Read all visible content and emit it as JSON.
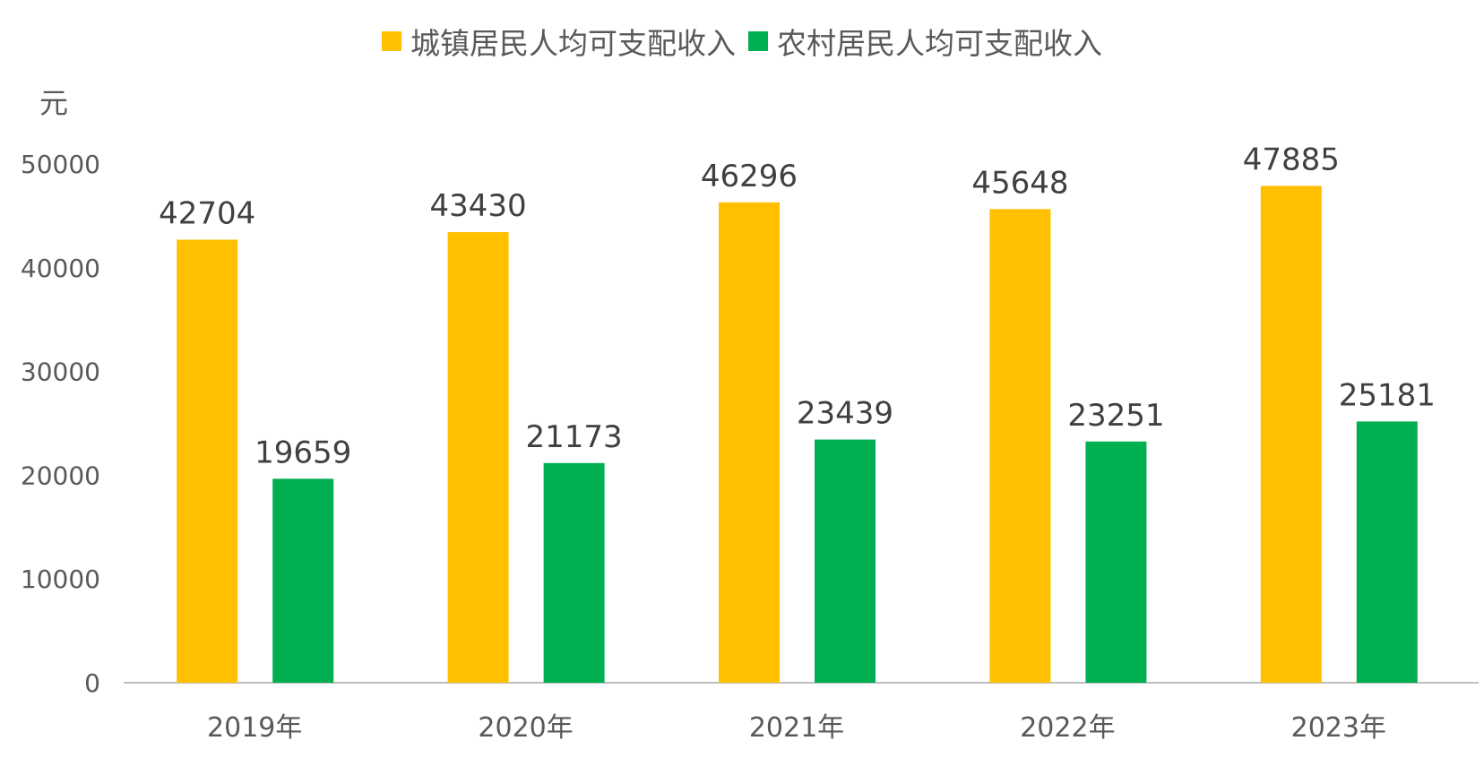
{
  "chart_data": {
    "type": "bar",
    "title": "",
    "ylabel": "元",
    "xlabel": "",
    "categories": [
      "2019年",
      "2020年",
      "2021年",
      "2022年",
      "2023年"
    ],
    "series": [
      {
        "name": "城镇居民人均可支配收入",
        "color": "#FFC000",
        "values": [
          42704,
          43430,
          46296,
          45648,
          47885
        ]
      },
      {
        "name": "农村居民人均可支配收入",
        "color": "#00B050",
        "values": [
          19659,
          21173,
          23439,
          23251,
          25181
        ]
      }
    ],
    "ylim": [
      0,
      50000
    ],
    "yticks": [
      "0",
      "10000",
      "20000",
      "30000",
      "40000",
      "50000"
    ],
    "grid": false,
    "legend_position": "top-center",
    "data_labels": true
  }
}
